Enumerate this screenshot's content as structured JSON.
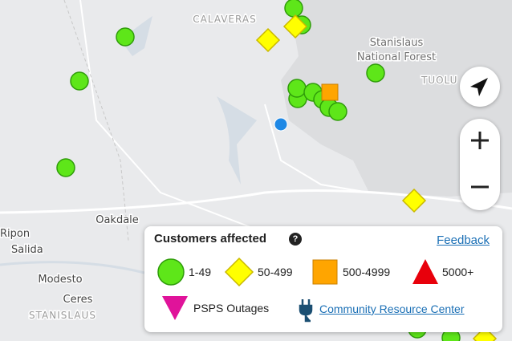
{
  "map": {
    "labels": {
      "calaveras": "CALAVERAS",
      "forest_1": "Stanislaus",
      "forest_2": "National Forest",
      "tuolumne": "TUOLU",
      "oakdale": "Oakdale",
      "ripon": "Ripon",
      "salida": "Salida",
      "modesto": "Modesto",
      "ceres": "Ceres",
      "stanislaus": "STANISLAUS"
    },
    "legend": {
      "title": "Customers affected",
      "feedback": "Feedback",
      "items": [
        "1-49",
        "50-499",
        "500-4999",
        "5000+"
      ],
      "psps": "PSPS Outages",
      "resource": "Community Resource Center"
    }
  }
}
